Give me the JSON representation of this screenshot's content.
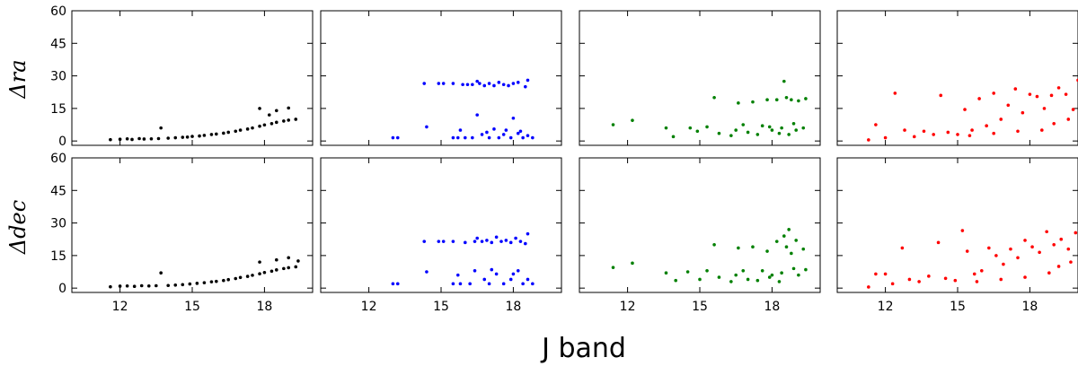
{
  "chart_data": {
    "type": "scatter",
    "layout": "2 rows x 4 columns of scatter panels, shared axes",
    "xlabel": "J band",
    "row_labels": [
      "Δra",
      "Δdec"
    ],
    "xlim": [
      10,
      20
    ],
    "ylim": [
      -2,
      60
    ],
    "xticks": [
      12,
      15,
      18
    ],
    "yticks": [
      0,
      15,
      30,
      45,
      60
    ],
    "grid": false,
    "legend": "none",
    "colors": [
      "#000000",
      "#0000ff",
      "#008000",
      "#ff0000"
    ],
    "panels": [
      {
        "name": "black-ra",
        "color": "#000000",
        "points": [
          [
            11.6,
            0.6
          ],
          [
            12.0,
            0.8
          ],
          [
            12.3,
            1.0
          ],
          [
            12.5,
            0.7
          ],
          [
            12.8,
            1.1
          ],
          [
            13.0,
            0.9
          ],
          [
            13.3,
            1.0
          ],
          [
            13.6,
            1.1
          ],
          [
            13.7,
            6.0
          ],
          [
            14.0,
            1.3
          ],
          [
            14.3,
            1.5
          ],
          [
            14.6,
            1.7
          ],
          [
            14.8,
            1.8
          ],
          [
            15.0,
            2.1
          ],
          [
            15.3,
            2.3
          ],
          [
            15.5,
            2.6
          ],
          [
            15.8,
            3.0
          ],
          [
            16.0,
            3.2
          ],
          [
            16.3,
            3.6
          ],
          [
            16.5,
            4.0
          ],
          [
            16.8,
            4.5
          ],
          [
            17.0,
            5.0
          ],
          [
            17.3,
            5.5
          ],
          [
            17.5,
            6.0
          ],
          [
            17.8,
            6.8
          ],
          [
            18.0,
            7.4
          ],
          [
            18.3,
            8.0
          ],
          [
            18.5,
            8.6
          ],
          [
            18.8,
            9.2
          ],
          [
            19.0,
            9.6
          ],
          [
            19.3,
            10.0
          ],
          [
            17.8,
            15.0
          ],
          [
            18.5,
            14.0
          ],
          [
            19.0,
            15.2
          ],
          [
            18.2,
            12.0
          ]
        ]
      },
      {
        "name": "blue-ra",
        "color": "#0000ff",
        "points": [
          [
            13.0,
            1.5
          ],
          [
            13.2,
            1.5
          ],
          [
            14.3,
            26.5
          ],
          [
            14.4,
            6.5
          ],
          [
            14.9,
            26.5
          ],
          [
            15.1,
            26.5
          ],
          [
            15.5,
            26.5
          ],
          [
            15.5,
            1.5
          ],
          [
            15.7,
            1.5
          ],
          [
            15.9,
            26.0
          ],
          [
            16.1,
            26.0
          ],
          [
            16.3,
            26.0
          ],
          [
            16.5,
            27.5
          ],
          [
            16.6,
            26.5
          ],
          [
            16.8,
            25.5
          ],
          [
            17.0,
            26.5
          ],
          [
            17.2,
            25.5
          ],
          [
            17.4,
            27.0
          ],
          [
            17.6,
            26.0
          ],
          [
            17.8,
            25.5
          ],
          [
            18.0,
            26.5
          ],
          [
            18.2,
            27.0
          ],
          [
            18.5,
            25.0
          ],
          [
            18.6,
            28.0
          ],
          [
            16.0,
            1.5
          ],
          [
            16.3,
            1.5
          ],
          [
            16.5,
            12.0
          ],
          [
            16.7,
            3.0
          ],
          [
            17.0,
            1.5
          ],
          [
            17.2,
            5.5
          ],
          [
            17.4,
            1.5
          ],
          [
            17.6,
            3.0
          ],
          [
            17.9,
            1.5
          ],
          [
            18.0,
            10.5
          ],
          [
            18.2,
            3.5
          ],
          [
            18.4,
            1.5
          ],
          [
            18.6,
            2.5
          ],
          [
            18.8,
            1.5
          ],
          [
            15.8,
            5.0
          ],
          [
            16.9,
            4.0
          ],
          [
            17.7,
            5.0
          ],
          [
            18.3,
            4.5
          ]
        ]
      },
      {
        "name": "green-ra",
        "color": "#008000",
        "points": [
          [
            11.4,
            7.5
          ],
          [
            12.2,
            9.5
          ],
          [
            13.6,
            6.0
          ],
          [
            13.9,
            2.0
          ],
          [
            14.6,
            6.0
          ],
          [
            14.9,
            4.5
          ],
          [
            15.3,
            6.5
          ],
          [
            15.6,
            20.0
          ],
          [
            15.8,
            3.5
          ],
          [
            16.3,
            2.5
          ],
          [
            16.5,
            5.0
          ],
          [
            16.6,
            17.5
          ],
          [
            16.8,
            7.5
          ],
          [
            17.0,
            4.0
          ],
          [
            17.2,
            18.0
          ],
          [
            17.4,
            3.0
          ],
          [
            17.6,
            7.0
          ],
          [
            17.8,
            19.0
          ],
          [
            18.0,
            5.0
          ],
          [
            18.2,
            19.0
          ],
          [
            18.4,
            6.0
          ],
          [
            18.5,
            27.5
          ],
          [
            18.6,
            20.0
          ],
          [
            18.7,
            3.0
          ],
          [
            18.8,
            19.0
          ],
          [
            19.0,
            5.0
          ],
          [
            19.1,
            18.5
          ],
          [
            19.3,
            6.0
          ],
          [
            19.4,
            19.5
          ],
          [
            18.9,
            8.0
          ],
          [
            18.3,
            3.5
          ],
          [
            17.9,
            6.5
          ]
        ]
      },
      {
        "name": "red-ra",
        "color": "#ff0000",
        "points": [
          [
            11.3,
            0.5
          ],
          [
            11.6,
            7.5
          ],
          [
            12.0,
            1.5
          ],
          [
            12.4,
            22.0
          ],
          [
            12.8,
            5.0
          ],
          [
            13.2,
            2.0
          ],
          [
            13.6,
            4.5
          ],
          [
            14.0,
            3.0
          ],
          [
            14.3,
            21.0
          ],
          [
            14.6,
            4.0
          ],
          [
            15.0,
            3.0
          ],
          [
            15.3,
            14.5
          ],
          [
            15.6,
            5.0
          ],
          [
            15.9,
            19.5
          ],
          [
            16.2,
            7.0
          ],
          [
            16.5,
            22.0
          ],
          [
            16.8,
            10.0
          ],
          [
            17.1,
            16.5
          ],
          [
            17.4,
            24.0
          ],
          [
            17.7,
            13.0
          ],
          [
            18.0,
            21.5
          ],
          [
            18.3,
            20.5
          ],
          [
            18.6,
            15.0
          ],
          [
            18.9,
            21.0
          ],
          [
            19.2,
            24.5
          ],
          [
            19.5,
            21.5
          ],
          [
            19.8,
            14.5
          ],
          [
            20.0,
            28.0
          ],
          [
            19.0,
            8.0
          ],
          [
            18.5,
            5.0
          ],
          [
            17.5,
            4.5
          ],
          [
            16.5,
            3.5
          ],
          [
            15.5,
            2.5
          ],
          [
            19.6,
            10.0
          ]
        ]
      },
      {
        "name": "black-dec",
        "color": "#000000",
        "points": [
          [
            11.6,
            0.6
          ],
          [
            12.0,
            0.9
          ],
          [
            12.3,
            1.0
          ],
          [
            12.6,
            0.8
          ],
          [
            12.9,
            1.1
          ],
          [
            13.2,
            1.0
          ],
          [
            13.5,
            1.1
          ],
          [
            13.7,
            7.0
          ],
          [
            14.0,
            1.2
          ],
          [
            14.3,
            1.4
          ],
          [
            14.6,
            1.6
          ],
          [
            14.9,
            1.9
          ],
          [
            15.2,
            2.2
          ],
          [
            15.5,
            2.5
          ],
          [
            15.8,
            2.9
          ],
          [
            16.0,
            3.1
          ],
          [
            16.3,
            3.5
          ],
          [
            16.5,
            3.9
          ],
          [
            16.8,
            4.4
          ],
          [
            17.0,
            4.9
          ],
          [
            17.3,
            5.4
          ],
          [
            17.5,
            5.9
          ],
          [
            17.8,
            6.6
          ],
          [
            18.0,
            7.2
          ],
          [
            18.3,
            7.8
          ],
          [
            18.5,
            8.4
          ],
          [
            18.8,
            9.0
          ],
          [
            19.0,
            9.4
          ],
          [
            19.3,
            9.8
          ],
          [
            18.5,
            13.0
          ],
          [
            19.0,
            14.0
          ],
          [
            17.8,
            12.0
          ],
          [
            19.4,
            12.5
          ]
        ]
      },
      {
        "name": "blue-dec",
        "color": "#0000ff",
        "points": [
          [
            13.0,
            2.0
          ],
          [
            13.2,
            2.0
          ],
          [
            14.3,
            21.5
          ],
          [
            14.4,
            7.5
          ],
          [
            14.9,
            21.5
          ],
          [
            15.1,
            21.5
          ],
          [
            15.5,
            21.5
          ],
          [
            15.5,
            2.0
          ],
          [
            15.8,
            2.0
          ],
          [
            16.0,
            21.0
          ],
          [
            16.2,
            2.0
          ],
          [
            16.4,
            21.5
          ],
          [
            16.5,
            23.0
          ],
          [
            16.7,
            21.5
          ],
          [
            16.9,
            22.0
          ],
          [
            17.1,
            21.0
          ],
          [
            17.3,
            23.5
          ],
          [
            17.5,
            21.5
          ],
          [
            17.7,
            22.0
          ],
          [
            17.9,
            21.0
          ],
          [
            18.1,
            23.0
          ],
          [
            18.3,
            21.5
          ],
          [
            18.5,
            20.5
          ],
          [
            18.6,
            25.0
          ],
          [
            16.4,
            8.0
          ],
          [
            16.8,
            4.0
          ],
          [
            17.0,
            2.0
          ],
          [
            17.3,
            6.5
          ],
          [
            17.6,
            2.0
          ],
          [
            17.9,
            4.0
          ],
          [
            18.2,
            8.0
          ],
          [
            18.4,
            2.0
          ],
          [
            18.6,
            4.0
          ],
          [
            18.8,
            2.0
          ],
          [
            15.7,
            6.0
          ],
          [
            17.1,
            8.5
          ],
          [
            18.0,
            6.5
          ]
        ]
      },
      {
        "name": "green-dec",
        "color": "#008000",
        "points": [
          [
            11.4,
            9.5
          ],
          [
            12.2,
            11.5
          ],
          [
            13.6,
            7.0
          ],
          [
            14.0,
            3.5
          ],
          [
            14.5,
            7.5
          ],
          [
            15.0,
            4.0
          ],
          [
            15.3,
            8.0
          ],
          [
            15.6,
            20.0
          ],
          [
            15.8,
            5.0
          ],
          [
            16.3,
            3.0
          ],
          [
            16.5,
            6.0
          ],
          [
            16.6,
            18.5
          ],
          [
            16.8,
            8.0
          ],
          [
            17.0,
            4.0
          ],
          [
            17.2,
            19.0
          ],
          [
            17.4,
            3.5
          ],
          [
            17.6,
            8.0
          ],
          [
            17.8,
            17.0
          ],
          [
            18.0,
            6.0
          ],
          [
            18.2,
            21.5
          ],
          [
            18.4,
            7.0
          ],
          [
            18.5,
            24.0
          ],
          [
            18.6,
            19.0
          ],
          [
            18.7,
            27.0
          ],
          [
            18.8,
            16.0
          ],
          [
            19.0,
            22.0
          ],
          [
            19.1,
            6.0
          ],
          [
            19.3,
            18.0
          ],
          [
            19.4,
            8.5
          ],
          [
            18.9,
            9.0
          ],
          [
            18.3,
            3.0
          ],
          [
            17.9,
            5.0
          ]
        ]
      },
      {
        "name": "red-dec",
        "color": "#ff0000",
        "points": [
          [
            11.3,
            0.5
          ],
          [
            11.6,
            6.5
          ],
          [
            12.0,
            6.5
          ],
          [
            12.3,
            2.0
          ],
          [
            12.7,
            18.5
          ],
          [
            13.0,
            4.0
          ],
          [
            13.4,
            3.0
          ],
          [
            13.8,
            5.5
          ],
          [
            14.2,
            21.0
          ],
          [
            14.5,
            4.5
          ],
          [
            14.9,
            3.5
          ],
          [
            15.2,
            26.5
          ],
          [
            15.4,
            17.0
          ],
          [
            15.7,
            6.5
          ],
          [
            16.0,
            8.0
          ],
          [
            16.3,
            18.5
          ],
          [
            16.6,
            15.0
          ],
          [
            16.9,
            11.0
          ],
          [
            17.2,
            18.0
          ],
          [
            17.5,
            14.0
          ],
          [
            17.8,
            22.0
          ],
          [
            18.1,
            19.0
          ],
          [
            18.4,
            16.5
          ],
          [
            18.7,
            26.0
          ],
          [
            19.0,
            20.0
          ],
          [
            19.3,
            22.5
          ],
          [
            19.6,
            18.0
          ],
          [
            19.9,
            25.5
          ],
          [
            19.2,
            10.0
          ],
          [
            18.8,
            7.0
          ],
          [
            17.8,
            5.0
          ],
          [
            16.8,
            4.0
          ],
          [
            15.8,
            3.0
          ],
          [
            19.7,
            12.0
          ]
        ]
      }
    ]
  }
}
